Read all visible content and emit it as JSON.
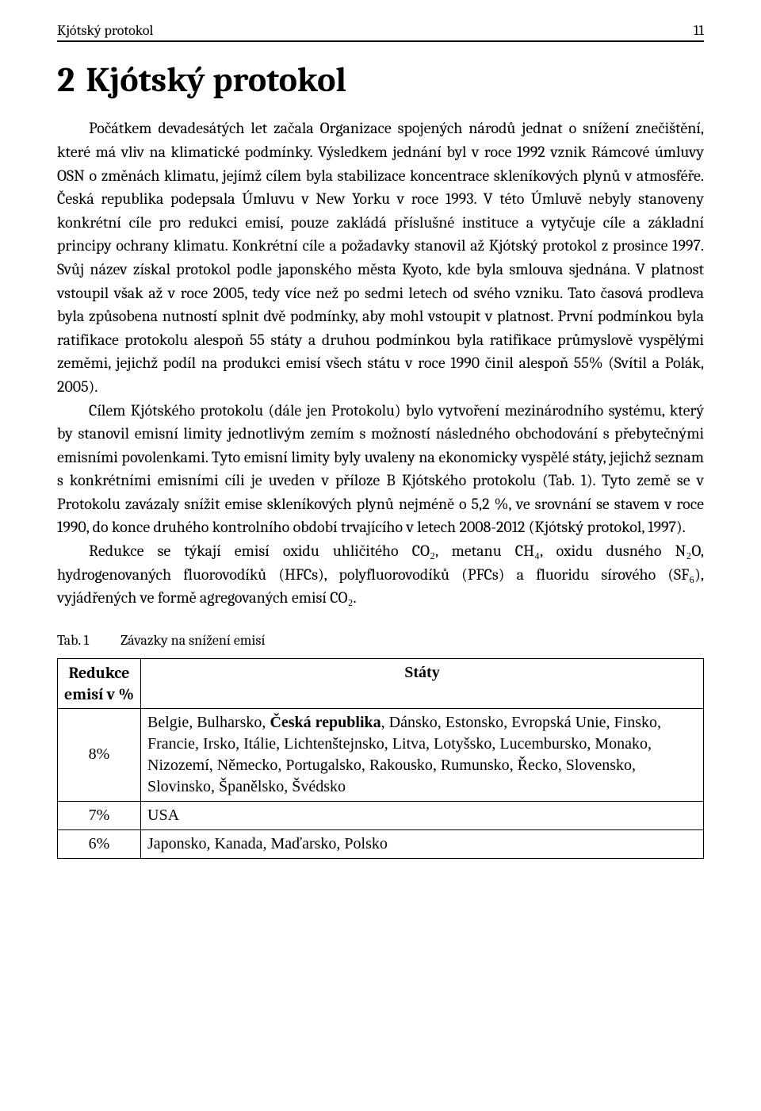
{
  "header": {
    "running_title": "Kjótský protokol",
    "page_number": "11"
  },
  "chapter": {
    "number": "2",
    "title": "Kjótský protokol"
  },
  "paragraphs": {
    "p1_a": "Počátkem devadesátých let začala Organizace spojených národů jednat o snížení znečištění, které má vliv na klimatické podmínky. Výsledkem jednání byl v roce 1992 vznik Rámcové úmluvy OSN o změnách klimatu, jejímž cílem byla stabilizace koncentrace skleníkových plynů v atmosféře. Česká republika podepsala Úmluvu v New Yorku v roce 1993. V této Úmluvě nebyly stanoveny konkrétní cíle pro redukci emisí, pouze zakládá příslušné instituce a vytyčuje cíle a základní principy ochrany klimatu. Konkrétní cíle a požadavky stanovil až Kjótský protokol z prosince 1997. Svůj název získal protokol podle japonského města Kyoto, kde byla smlouva sjednána. V platnost vstoupil však až v roce 2005, tedy více než po sedmi letech od svého vzniku. Tato časová prodleva byla způsobena nutností splnit dvě podmínky, aby mohl vstoupit v platnost. První podmínkou byla ratifikace protokolu alespoň 55 státy a druhou podmínkou byla ratifikace průmyslově vyspělými zeměmi, jejichž podíl na produkci emisí všech státu v roce 1990 činil alespoň 55% (Svítil a Polák, 2005).",
    "p2": "Cílem Kjótského protokolu (dále jen Protokolu) bylo vytvoření mezinárodního systému, který by stanovil emisní limity jednotlivým zemím s možností následného obchodování s přebytečnými emisními povolenkami. Tyto emisní limity byly uvaleny na ekonomicky vyspělé státy, jejichž seznam s konkrétními emisními cíli je uveden v příloze B Kjótského protokolu (Tab. 1). Tyto země se v Protokolu zavázaly snížit emise skleníkových plynů nejméně o 5,2 %, ve srovnání se stavem v roce 1990, do konce druhého kontrolního období trvajícího v letech 2008-2012 (Kjótský protokol, 1997).",
    "p3": "Redukce se týkají emisí oxidu uhličitého CO₂, metanu CH₄, oxidu dusného N₂O, hydrogenovaných fluorovodíků (HFCs), polyfluorovodíků (PFCs) a fluoridu sírového (SF₆), vyjádřených ve formě agregovaných emisí CO₂."
  },
  "table": {
    "caption_label": "Tab. 1",
    "caption_text": "Závazky na snížení emisí",
    "col1_header": "Redukce emisí v %",
    "col2_header": "Státy",
    "rows": [
      {
        "pct": "8%",
        "pre": "Belgie, Bulharsko, ",
        "bold": "Česká republika",
        "post": ", Dánsko, Estonsko, Evropská Unie, Finsko, Francie, Irsko, Itálie, Lichtenštejnsko, Litva, Lotyšsko, Lucembursko, Monako, Nizozemí, Německo, Portugalsko, Rakousko, Rumunsko, Řecko, Slovensko, Slovinsko, Španělsko, Švédsko"
      },
      {
        "pct": "7%",
        "text": "USA"
      },
      {
        "pct": "6%",
        "text": "Japonsko, Kanada, Maďarsko, Polsko"
      }
    ]
  }
}
